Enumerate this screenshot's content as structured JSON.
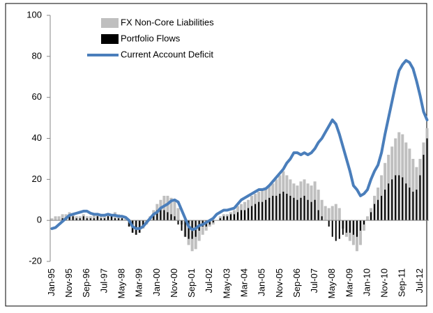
{
  "chart_data": {
    "type": "bar",
    "categories": [
      "Jan-95",
      null,
      null,
      null,
      null,
      "Nov-95",
      null,
      null,
      null,
      null,
      "Sep-96",
      null,
      null,
      null,
      null,
      "Jul-97",
      null,
      null,
      null,
      null,
      "May-98",
      null,
      null,
      null,
      null,
      "Mar-99",
      null,
      null,
      null,
      null,
      "Jan-00",
      null,
      null,
      null,
      null,
      "Nov-00",
      null,
      null,
      null,
      null,
      "Sep-01",
      null,
      null,
      null,
      null,
      "Jul-02",
      null,
      null,
      null,
      null,
      "May-03",
      null,
      null,
      null,
      null,
      "Mar-04",
      null,
      null,
      null,
      null,
      "Jan-05",
      null,
      null,
      null,
      null,
      "Nov-05",
      null,
      null,
      null,
      null,
      "Sep-06",
      null,
      null,
      null,
      null,
      "Jul-07",
      null,
      null,
      null,
      null,
      "May-08",
      null,
      null,
      null,
      null,
      "Mar-09",
      null,
      null,
      null,
      null,
      "Jan-10",
      null,
      null,
      null,
      null,
      "Nov-10",
      null,
      null,
      null,
      null,
      "Sep-11",
      null,
      null,
      null,
      null,
      "Jul-12",
      null,
      null
    ],
    "series": [
      {
        "name": "FX Non-Core Liabilities",
        "type": "bar",
        "color": "#bfbfbf",
        "values": [
          1,
          2,
          2,
          3,
          3,
          4,
          3,
          2,
          2,
          3,
          2,
          2,
          3,
          3,
          2,
          2,
          3,
          3,
          4,
          3,
          2,
          1,
          -3,
          -6,
          -7,
          -6,
          -4,
          -2,
          2,
          5,
          8,
          10,
          12,
          12,
          11,
          10,
          6,
          -2,
          -8,
          -12,
          -15,
          -14,
          -10,
          -7,
          -5,
          -3,
          -2,
          0,
          2,
          3,
          3,
          4,
          5,
          7,
          8,
          9,
          10,
          12,
          13,
          14,
          15,
          16,
          17,
          18,
          20,
          22,
          24,
          22,
          20,
          18,
          17,
          19,
          20,
          18,
          17,
          19,
          15,
          10,
          7,
          6,
          7,
          8,
          6,
          -4,
          -8,
          -10,
          -12,
          -15,
          -12,
          -5,
          2,
          6,
          12,
          16,
          22,
          28,
          32,
          36,
          40,
          43,
          42,
          38,
          35,
          30,
          26,
          30,
          38,
          45
        ]
      },
      {
        "name": "Portfolio Flows",
        "type": "bar",
        "color": "#000000",
        "values": [
          0,
          0,
          0,
          1,
          1,
          2,
          2,
          1,
          1,
          2,
          1,
          1,
          1,
          2,
          1,
          1,
          2,
          2,
          1,
          1,
          1,
          0,
          -3,
          -6,
          -7,
          -6,
          -3,
          -1,
          1,
          3,
          5,
          6,
          5,
          4,
          3,
          2,
          -2,
          -5,
          -8,
          -9,
          -9,
          -8,
          -5,
          -3,
          -3,
          -2,
          -1,
          0,
          1,
          2,
          2,
          3,
          3,
          4,
          5,
          5,
          6,
          7,
          8,
          9,
          9,
          10,
          11,
          12,
          12,
          13,
          14,
          13,
          12,
          11,
          10,
          11,
          12,
          10,
          9,
          10,
          5,
          2,
          0,
          -3,
          -8,
          -10,
          -9,
          -7,
          -6,
          -6,
          -7,
          -8,
          -5,
          -2,
          0,
          4,
          8,
          10,
          12,
          15,
          18,
          20,
          22,
          22,
          21,
          18,
          16,
          14,
          15,
          22,
          32,
          40
        ]
      },
      {
        "name": "Current Account Deficit",
        "type": "line",
        "color": "#4a7ebb",
        "values": [
          -4,
          -3.5,
          -2,
          -0.5,
          1,
          2.5,
          3,
          3.5,
          4,
          4.5,
          4.5,
          3.5,
          3,
          3,
          2.5,
          2.5,
          3,
          2.5,
          2.5,
          2,
          2,
          1.5,
          0,
          -3,
          -4,
          -4,
          -3,
          -1,
          1,
          3,
          4,
          6,
          7,
          8,
          9.5,
          10,
          9,
          5,
          1,
          -3,
          -4.5,
          -4,
          -2.5,
          -2,
          -1,
          0,
          1,
          3,
          4,
          5,
          5,
          5.5,
          6,
          8,
          10,
          11,
          12,
          13,
          14,
          15,
          15,
          15.5,
          17,
          19,
          21,
          23,
          25,
          28,
          30,
          33,
          33,
          32,
          33,
          32,
          33,
          35,
          38,
          40,
          43,
          46,
          49,
          47,
          42,
          36,
          30,
          24,
          17,
          15,
          12,
          13,
          15,
          20,
          24,
          27,
          33,
          42,
          50,
          58,
          66,
          73,
          76,
          78,
          77,
          74,
          68,
          61,
          53,
          49
        ]
      }
    ],
    "ylim": [
      -20,
      100
    ],
    "yticks": [
      -20,
      0,
      20,
      40,
      60,
      80,
      100
    ],
    "grid": false,
    "legend": "top-left"
  }
}
